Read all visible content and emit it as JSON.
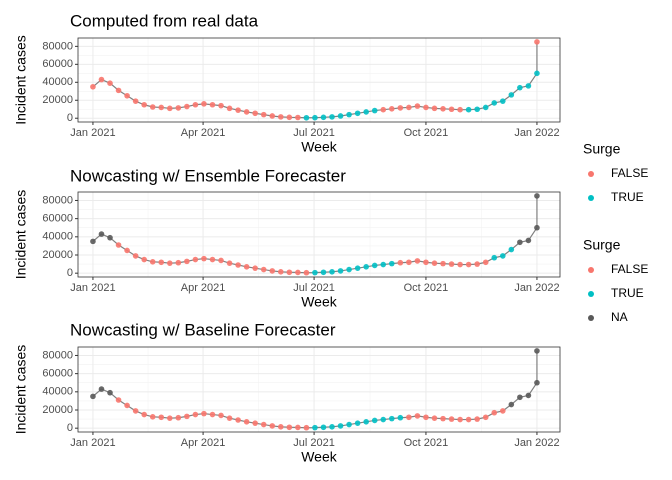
{
  "chart_data": [
    {
      "type": "line",
      "title": "Computed from real data",
      "xlabel": "Week",
      "ylabel": "Incident cases",
      "x": [
        0,
        1,
        2,
        3,
        4,
        5,
        6,
        7,
        8,
        9,
        10,
        11,
        12,
        13,
        14,
        15,
        16,
        17,
        18,
        19,
        20,
        21,
        22,
        23,
        24,
        25,
        26,
        27,
        28,
        29,
        30,
        31,
        32,
        33,
        34,
        35,
        36,
        37,
        38,
        39,
        40,
        41,
        42,
        43,
        44,
        45,
        46,
        47,
        48,
        49,
        50,
        51,
        52
      ],
      "values": [
        35000,
        43000,
        39000,
        31000,
        25000,
        19000,
        15000,
        12500,
        12000,
        11000,
        11500,
        13000,
        15000,
        16000,
        15000,
        14000,
        11000,
        9000,
        7000,
        5500,
        4000,
        2500,
        1500,
        1000,
        800,
        500,
        600,
        1000,
        1500,
        2500,
        4000,
        5500,
        7000,
        8500,
        9500,
        10500,
        11500,
        12000,
        13500,
        12000,
        11000,
        10500,
        10000,
        9500,
        9500,
        10000,
        12000,
        17000,
        19000,
        26000,
        34000,
        36000,
        50000
      ],
      "groups": [
        "FALSE",
        "FALSE",
        "FALSE",
        "FALSE",
        "FALSE",
        "FALSE",
        "FALSE",
        "FALSE",
        "FALSE",
        "FALSE",
        "FALSE",
        "FALSE",
        "FALSE",
        "FALSE",
        "FALSE",
        "FALSE",
        "FALSE",
        "FALSE",
        "FALSE",
        "FALSE",
        "FALSE",
        "FALSE",
        "FALSE",
        "FALSE",
        "FALSE",
        "TRUE",
        "TRUE",
        "TRUE",
        "TRUE",
        "TRUE",
        "TRUE",
        "TRUE",
        "TRUE",
        "TRUE",
        "FALSE",
        "FALSE",
        "FALSE",
        "FALSE",
        "FALSE",
        "FALSE",
        "FALSE",
        "FALSE",
        "FALSE",
        "FALSE",
        "TRUE",
        "TRUE",
        "TRUE",
        "TRUE",
        "TRUE",
        "TRUE",
        "TRUE",
        "TRUE",
        "TRUE"
      ],
      "last_value": 85000,
      "last_group": "FALSE",
      "xlim": [
        -1.75,
        54.7
      ],
      "ylim": [
        -4200,
        89300
      ],
      "xticks": [
        {
          "value": 0,
          "label": "Jan 2021"
        },
        {
          "value": 12.9,
          "label": "Apr 2021"
        },
        {
          "value": 25.9,
          "label": "Jul 2021"
        },
        {
          "value": 39,
          "label": "Oct 2021"
        },
        {
          "value": 52,
          "label": "Jan 2022"
        }
      ],
      "yticks": [
        0,
        20000,
        40000,
        60000,
        80000
      ],
      "grid": true,
      "line_color": "#808080"
    },
    {
      "type": "line",
      "title": "Nowcasting w/ Ensemble Forecaster",
      "xlabel": "Week",
      "ylabel": "Incident cases",
      "x": [
        0,
        1,
        2,
        3,
        4,
        5,
        6,
        7,
        8,
        9,
        10,
        11,
        12,
        13,
        14,
        15,
        16,
        17,
        18,
        19,
        20,
        21,
        22,
        23,
        24,
        25,
        26,
        27,
        28,
        29,
        30,
        31,
        32,
        33,
        34,
        35,
        36,
        37,
        38,
        39,
        40,
        41,
        42,
        43,
        44,
        45,
        46,
        47,
        48,
        49,
        50,
        51,
        52
      ],
      "values": [
        35000,
        43000,
        39000,
        31000,
        25000,
        19000,
        15000,
        12500,
        12000,
        11000,
        11500,
        13000,
        15000,
        16000,
        15000,
        14000,
        11000,
        9000,
        7000,
        5500,
        4000,
        2500,
        1500,
        1000,
        800,
        500,
        600,
        1000,
        1500,
        2500,
        4000,
        5500,
        7000,
        8500,
        9500,
        10500,
        11500,
        12000,
        13500,
        12000,
        11000,
        10500,
        10000,
        9500,
        9500,
        10000,
        12000,
        17000,
        19000,
        26000,
        34000,
        36000,
        50000
      ],
      "groups": [
        "NA",
        "NA",
        "NA",
        "FALSE",
        "FALSE",
        "FALSE",
        "FALSE",
        "FALSE",
        "FALSE",
        "FALSE",
        "FALSE",
        "FALSE",
        "FALSE",
        "FALSE",
        "FALSE",
        "FALSE",
        "FALSE",
        "FALSE",
        "FALSE",
        "FALSE",
        "FALSE",
        "FALSE",
        "FALSE",
        "FALSE",
        "FALSE",
        "FALSE",
        "TRUE",
        "TRUE",
        "TRUE",
        "TRUE",
        "TRUE",
        "TRUE",
        "TRUE",
        "TRUE",
        "TRUE",
        "TRUE",
        "FALSE",
        "FALSE",
        "FALSE",
        "FALSE",
        "FALSE",
        "FALSE",
        "FALSE",
        "FALSE",
        "FALSE",
        "FALSE",
        "FALSE",
        "TRUE",
        "TRUE",
        "TRUE",
        "NA",
        "NA",
        "NA"
      ],
      "last_value": 85000,
      "last_group": "NA",
      "xlim": [
        -1.75,
        54.7
      ],
      "ylim": [
        -4200,
        89300
      ],
      "xticks": [
        {
          "value": 0,
          "label": "Jan 2021"
        },
        {
          "value": 12.9,
          "label": "Apr 2021"
        },
        {
          "value": 25.9,
          "label": "Jul 2021"
        },
        {
          "value": 39,
          "label": "Oct 2021"
        },
        {
          "value": 52,
          "label": "Jan 2022"
        }
      ],
      "yticks": [
        0,
        20000,
        40000,
        60000,
        80000
      ],
      "grid": true,
      "line_color": "#808080"
    },
    {
      "type": "line",
      "title": "Nowcasting w/ Baseline Forecaster",
      "xlabel": "Week",
      "ylabel": "Incident cases",
      "x": [
        0,
        1,
        2,
        3,
        4,
        5,
        6,
        7,
        8,
        9,
        10,
        11,
        12,
        13,
        14,
        15,
        16,
        17,
        18,
        19,
        20,
        21,
        22,
        23,
        24,
        25,
        26,
        27,
        28,
        29,
        30,
        31,
        32,
        33,
        34,
        35,
        36,
        37,
        38,
        39,
        40,
        41,
        42,
        43,
        44,
        45,
        46,
        47,
        48,
        49,
        50,
        51,
        52
      ],
      "values": [
        35000,
        43000,
        39000,
        31000,
        25000,
        19000,
        15000,
        12500,
        12000,
        11000,
        11500,
        13000,
        15000,
        16000,
        15000,
        14000,
        11000,
        9000,
        7000,
        5500,
        4000,
        2500,
        1500,
        1000,
        800,
        500,
        600,
        1000,
        1500,
        2500,
        4000,
        5500,
        7000,
        8500,
        9500,
        10500,
        11500,
        12000,
        13500,
        12000,
        11000,
        10500,
        10000,
        9500,
        9500,
        10000,
        12000,
        17000,
        19000,
        26000,
        34000,
        36000,
        50000
      ],
      "groups": [
        "NA",
        "NA",
        "NA",
        "FALSE",
        "FALSE",
        "FALSE",
        "FALSE",
        "FALSE",
        "FALSE",
        "FALSE",
        "FALSE",
        "FALSE",
        "FALSE",
        "FALSE",
        "FALSE",
        "FALSE",
        "FALSE",
        "FALSE",
        "FALSE",
        "FALSE",
        "FALSE",
        "FALSE",
        "FALSE",
        "FALSE",
        "FALSE",
        "FALSE",
        "TRUE",
        "TRUE",
        "TRUE",
        "TRUE",
        "TRUE",
        "TRUE",
        "TRUE",
        "TRUE",
        "TRUE",
        "TRUE",
        "TRUE",
        "FALSE",
        "FALSE",
        "FALSE",
        "FALSE",
        "FALSE",
        "FALSE",
        "FALSE",
        "FALSE",
        "FALSE",
        "FALSE",
        "FALSE",
        "FALSE",
        "NA",
        "NA",
        "NA",
        "NA"
      ],
      "last_value": 85000,
      "last_group": "NA",
      "xlim": [
        -1.75,
        54.7
      ],
      "ylim": [
        -4200,
        89300
      ],
      "xticks": [
        {
          "value": 0,
          "label": "Jan 2021"
        },
        {
          "value": 12.9,
          "label": "Apr 2021"
        },
        {
          "value": 25.9,
          "label": "Jul 2021"
        },
        {
          "value": 39,
          "label": "Oct 2021"
        },
        {
          "value": 52,
          "label": "Jan 2022"
        }
      ],
      "yticks": [
        0,
        20000,
        40000,
        60000,
        80000
      ],
      "grid": true,
      "line_color": "#808080"
    }
  ],
  "legends": [
    {
      "title": "Surge",
      "entries": [
        {
          "label": "FALSE",
          "color": "#F8766D"
        },
        {
          "label": "TRUE",
          "color": "#00BFC4"
        }
      ]
    },
    {
      "title": "Surge",
      "entries": [
        {
          "label": "FALSE",
          "color": "#F8766D"
        },
        {
          "label": "TRUE",
          "color": "#00BFC4"
        },
        {
          "label": "NA",
          "color": "#595959"
        }
      ]
    }
  ]
}
